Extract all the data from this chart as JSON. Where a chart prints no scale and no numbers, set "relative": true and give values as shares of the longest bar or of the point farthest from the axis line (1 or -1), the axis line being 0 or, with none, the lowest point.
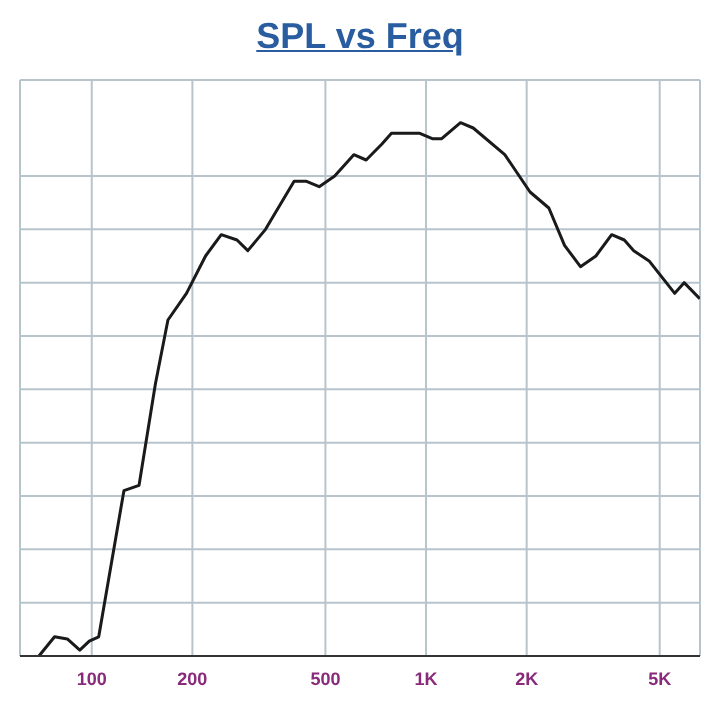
{
  "chart_data": {
    "type": "line",
    "title": "SPL vs Freq",
    "relative": true,
    "log": "x",
    "grid": true,
    "legend": false,
    "marker": "none",
    "line_style": "solid",
    "x": [
      69.5,
      77.4,
      84.5,
      92.1,
      98.3,
      104.9,
      124.8,
      138.5,
      155,
      169,
      192,
      219,
      244,
      272,
      293,
      331,
      403,
      439,
      479,
      533,
      608,
      662,
      738,
      788,
      859,
      958,
      1044,
      1114,
      1268,
      1384,
      1720,
      2047,
      2330,
      2596,
      2897,
      3222,
      3592,
      3918,
      4181,
      4660,
      5546,
      5916,
      6590
    ],
    "xlim": [
      61,
      6600
    ],
    "xticks": [
      100,
      200,
      500,
      {
        "value": 1000,
        "label": "1K"
      },
      {
        "value": 2000,
        "label": "2K"
      },
      {
        "value": 5000,
        "label": "5K"
      }
    ],
    "series": [
      {
        "color": "#1a1a1a",
        "values": [
          0,
          0.036,
          0.032,
          0.011,
          0.028,
          0.036,
          0.31,
          0.32,
          0.51,
          0.63,
          0.68,
          0.75,
          0.79,
          0.78,
          0.76,
          0.8,
          0.89,
          0.89,
          0.88,
          0.9,
          0.94,
          0.93,
          0.96,
          0.98,
          0.98,
          0.98,
          0.97,
          0.97,
          1,
          0.99,
          0.94,
          0.87,
          0.84,
          0.77,
          0.73,
          0.75,
          0.79,
          0.78,
          0.76,
          0.74,
          0.68,
          0.7,
          0.67
        ]
      }
    ]
  }
}
